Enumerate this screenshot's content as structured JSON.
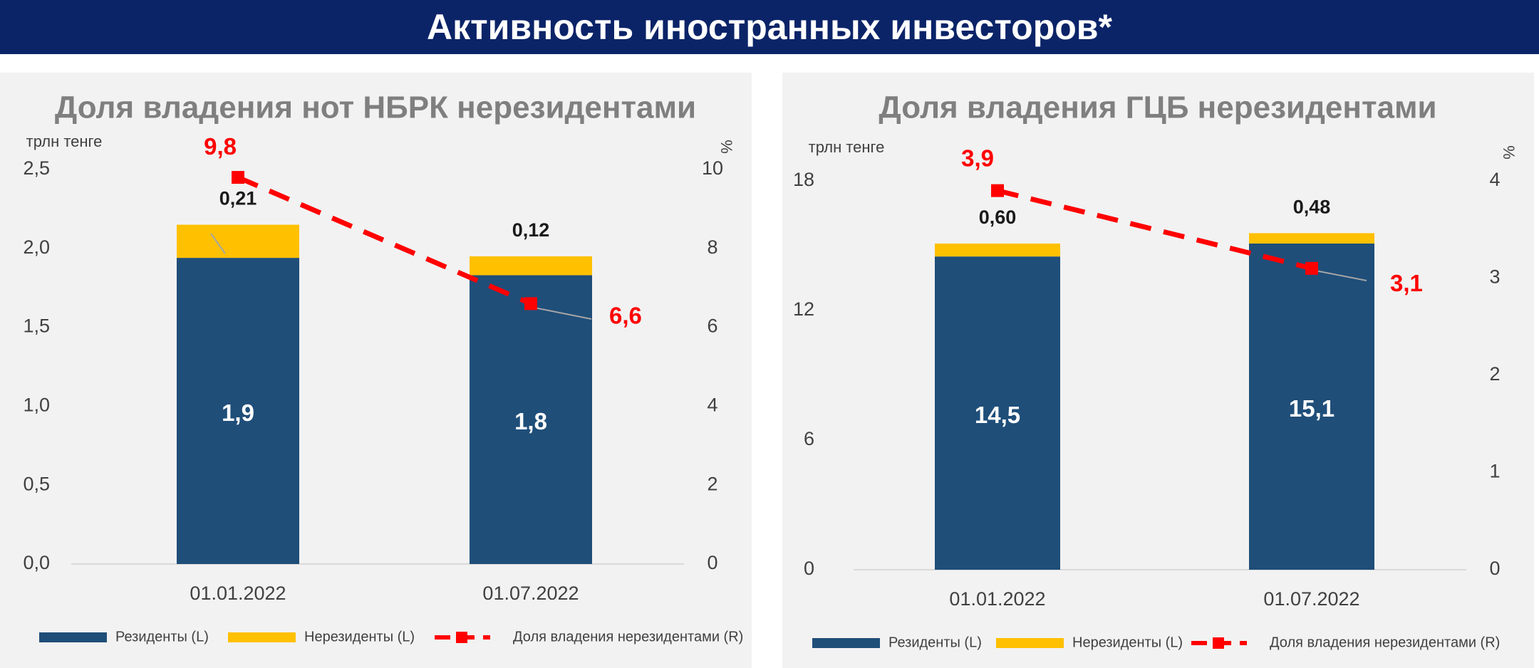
{
  "page": {
    "title": "Активность иностранных инвесторов*"
  },
  "colors": {
    "residents": "#1f4e79",
    "nonresidents": "#ffc000",
    "share": "#ff0000",
    "leader": "#a6a6a6",
    "axis": "#d9d9d9"
  },
  "legend": {
    "residents": "Резиденты (L)",
    "nonresidents": "Нерезиденты (L)",
    "share": "Доля владения нерезидентами (R)"
  },
  "chart_data": [
    {
      "type": "bar",
      "stacked": true,
      "title": "Доля владения нот НБРК нерезидентами",
      "ylabel": "трлн тенге",
      "y2label": "%",
      "categories": [
        "01.01.2022",
        "01.07.2022"
      ],
      "ylim": [
        0,
        2.5
      ],
      "y2lim": [
        0,
        10
      ],
      "yticks": [
        "0,0",
        "0,5",
        "1,0",
        "1,5",
        "2,0",
        "2,5"
      ],
      "y2ticks": [
        "0",
        "2",
        "4",
        "6",
        "8",
        "10"
      ],
      "series": [
        {
          "name": "Резиденты (L)",
          "axis": "left",
          "type": "bar",
          "values": [
            1.94,
            1.83
          ],
          "labels": [
            "1,9",
            "1,8"
          ]
        },
        {
          "name": "Нерезиденты (L)",
          "axis": "left",
          "type": "bar",
          "values": [
            0.21,
            0.12
          ],
          "labels": [
            "0,21",
            "0,12"
          ]
        },
        {
          "name": "Доля владения нерезидентами (R)",
          "axis": "right",
          "type": "line",
          "values": [
            9.8,
            6.6
          ],
          "labels": [
            "9,8",
            "6,6"
          ]
        }
      ],
      "grid": false,
      "legend_position": "bottom"
    },
    {
      "type": "bar",
      "stacked": true,
      "title": "Доля владения ГЦБ нерезидентами",
      "ylabel": "трлн тенге",
      "y2label": "%",
      "categories": [
        "01.01.2022",
        "01.07.2022"
      ],
      "ylim": [
        0,
        18
      ],
      "y2lim": [
        0,
        4
      ],
      "yticks": [
        "0",
        "6",
        "12",
        "18"
      ],
      "y2ticks": [
        "0",
        "1",
        "2",
        "3",
        "4"
      ],
      "series": [
        {
          "name": "Резиденты (L)",
          "axis": "left",
          "type": "bar",
          "values": [
            14.5,
            15.1
          ],
          "labels": [
            "14,5",
            "15,1"
          ]
        },
        {
          "name": "Нерезиденты (L)",
          "axis": "left",
          "type": "bar",
          "values": [
            0.6,
            0.48
          ],
          "labels": [
            "0,60",
            "0,48"
          ]
        },
        {
          "name": "Доля владения нерезидентами (R)",
          "axis": "right",
          "type": "line",
          "values": [
            3.9,
            3.1
          ],
          "labels": [
            "3,9",
            "3,1"
          ]
        }
      ],
      "grid": false,
      "legend_position": "bottom"
    }
  ]
}
